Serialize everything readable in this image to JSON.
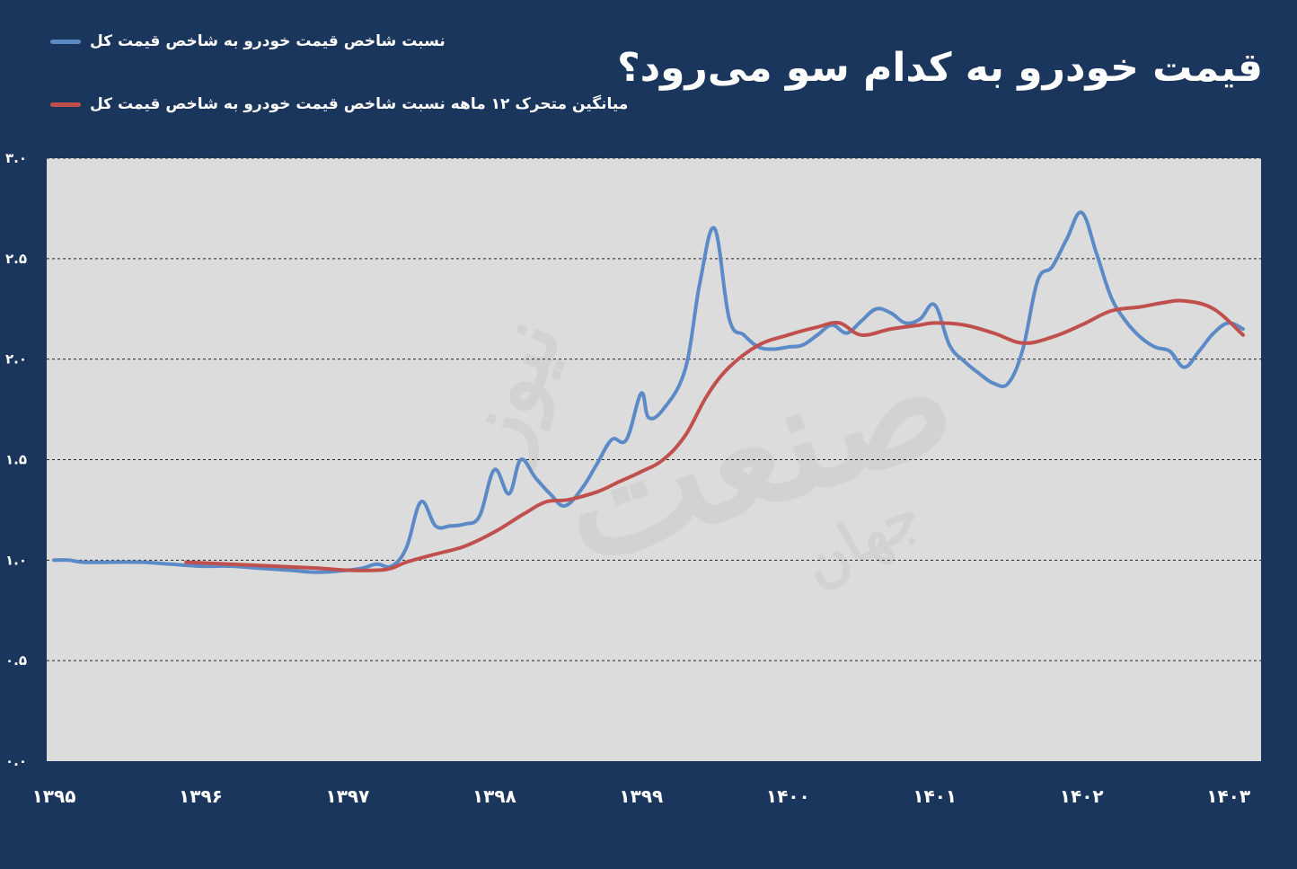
{
  "title": "قیمت خودرو به کدام سو می‌رود؟",
  "watermark": {
    "brand": "صنعت",
    "prefix": "جهان",
    "suffix": "نیوز"
  },
  "colors": {
    "background": "#1b365d",
    "plot": "#dcdcdc",
    "series_1": "#5b8ac7",
    "series_2": "#c0504d"
  },
  "chart_data": {
    "type": "line",
    "title": "قیمت خودرو به کدام سو می‌رود؟",
    "xlabel": "",
    "ylabel": "",
    "ylim": [
      0,
      3.0
    ],
    "yticks": [
      "۰.۰",
      "۰.۵",
      "۱.۰",
      "۱.۵",
      "۲.۰",
      "۲.۵",
      "۳.۰"
    ],
    "ytick_values": [
      0,
      0.5,
      1.0,
      1.5,
      2.0,
      2.5,
      3.0
    ],
    "xticks": [
      "۱۳۹۵",
      "۱۳۹۶",
      "۱۳۹۷",
      "۱۳۹۸",
      "۱۳۹۹",
      "۱۴۰۰",
      "۱۴۰۱",
      "۱۴۰۲",
      "۱۴۰۳"
    ],
    "xtick_values": [
      1395,
      1396,
      1397,
      1398,
      1399,
      1400,
      1401,
      1402,
      1403
    ],
    "xlim": [
      1395,
      1403.1
    ],
    "grid": true,
    "legend_position": "top-left",
    "series": [
      {
        "name": "نسبت شاخص قیمت خودرو به شاخص قیمت کل",
        "color": "#5b8ac7",
        "points": [
          [
            1395.0,
            1.0
          ],
          [
            1395.1,
            1.0
          ],
          [
            1395.2,
            0.99
          ],
          [
            1395.4,
            0.99
          ],
          [
            1395.6,
            0.99
          ],
          [
            1395.8,
            0.98
          ],
          [
            1396.0,
            0.97
          ],
          [
            1396.2,
            0.97
          ],
          [
            1396.4,
            0.96
          ],
          [
            1396.6,
            0.95
          ],
          [
            1396.8,
            0.94
          ],
          [
            1397.0,
            0.95
          ],
          [
            1397.1,
            0.96
          ],
          [
            1397.2,
            0.98
          ],
          [
            1397.3,
            0.97
          ],
          [
            1397.4,
            1.06
          ],
          [
            1397.5,
            1.29
          ],
          [
            1397.6,
            1.17
          ],
          [
            1397.7,
            1.17
          ],
          [
            1397.8,
            1.18
          ],
          [
            1397.9,
            1.22
          ],
          [
            1398.0,
            1.45
          ],
          [
            1398.1,
            1.33
          ],
          [
            1398.18,
            1.5
          ],
          [
            1398.28,
            1.41
          ],
          [
            1398.38,
            1.33
          ],
          [
            1398.48,
            1.27
          ],
          [
            1398.6,
            1.36
          ],
          [
            1398.7,
            1.48
          ],
          [
            1398.8,
            1.6
          ],
          [
            1398.9,
            1.6
          ],
          [
            1399.0,
            1.83
          ],
          [
            1399.05,
            1.71
          ],
          [
            1399.15,
            1.75
          ],
          [
            1399.3,
            1.95
          ],
          [
            1399.4,
            2.38
          ],
          [
            1399.5,
            2.65
          ],
          [
            1399.6,
            2.2
          ],
          [
            1399.7,
            2.12
          ],
          [
            1399.8,
            2.06
          ],
          [
            1399.9,
            2.05
          ],
          [
            1400.0,
            2.06
          ],
          [
            1400.1,
            2.07
          ],
          [
            1400.2,
            2.12
          ],
          [
            1400.3,
            2.17
          ],
          [
            1400.4,
            2.13
          ],
          [
            1400.5,
            2.19
          ],
          [
            1400.6,
            2.25
          ],
          [
            1400.7,
            2.23
          ],
          [
            1400.8,
            2.18
          ],
          [
            1400.9,
            2.2
          ],
          [
            1401.0,
            2.27
          ],
          [
            1401.1,
            2.07
          ],
          [
            1401.2,
            1.99
          ],
          [
            1401.3,
            1.93
          ],
          [
            1401.4,
            1.88
          ],
          [
            1401.5,
            1.88
          ],
          [
            1401.6,
            2.05
          ],
          [
            1401.7,
            2.39
          ],
          [
            1401.8,
            2.46
          ],
          [
            1401.9,
            2.6
          ],
          [
            1402.0,
            2.73
          ],
          [
            1402.1,
            2.53
          ],
          [
            1402.2,
            2.31
          ],
          [
            1402.3,
            2.19
          ],
          [
            1402.4,
            2.11
          ],
          [
            1402.5,
            2.06
          ],
          [
            1402.6,
            2.04
          ],
          [
            1402.7,
            1.96
          ],
          [
            1402.8,
            2.04
          ],
          [
            1402.9,
            2.13
          ],
          [
            1403.0,
            2.18
          ],
          [
            1403.1,
            2.15
          ]
        ]
      },
      {
        "name": "میانگین متحرک ۱۲ ماهه نسبت شاخص قیمت خودرو به شاخص قیمت کل",
        "color": "#c0504d",
        "points": [
          [
            1395.9,
            0.99
          ],
          [
            1396.2,
            0.98
          ],
          [
            1396.5,
            0.97
          ],
          [
            1396.8,
            0.96
          ],
          [
            1397.0,
            0.95
          ],
          [
            1397.2,
            0.95
          ],
          [
            1397.3,
            0.96
          ],
          [
            1397.4,
            0.99
          ],
          [
            1397.6,
            1.03
          ],
          [
            1397.8,
            1.07
          ],
          [
            1398.0,
            1.14
          ],
          [
            1398.2,
            1.23
          ],
          [
            1398.35,
            1.29
          ],
          [
            1398.5,
            1.3
          ],
          [
            1398.7,
            1.34
          ],
          [
            1398.85,
            1.39
          ],
          [
            1399.0,
            1.44
          ],
          [
            1399.15,
            1.5
          ],
          [
            1399.3,
            1.62
          ],
          [
            1399.45,
            1.82
          ],
          [
            1399.6,
            1.96
          ],
          [
            1399.8,
            2.07
          ],
          [
            1400.0,
            2.12
          ],
          [
            1400.2,
            2.16
          ],
          [
            1400.35,
            2.18
          ],
          [
            1400.5,
            2.12
          ],
          [
            1400.7,
            2.15
          ],
          [
            1400.9,
            2.17
          ],
          [
            1401.0,
            2.18
          ],
          [
            1401.2,
            2.17
          ],
          [
            1401.4,
            2.13
          ],
          [
            1401.6,
            2.08
          ],
          [
            1401.8,
            2.11
          ],
          [
            1402.0,
            2.17
          ],
          [
            1402.2,
            2.24
          ],
          [
            1402.4,
            2.26
          ],
          [
            1402.55,
            2.28
          ],
          [
            1402.7,
            2.29
          ],
          [
            1402.9,
            2.25
          ],
          [
            1403.1,
            2.12
          ]
        ]
      }
    ]
  }
}
